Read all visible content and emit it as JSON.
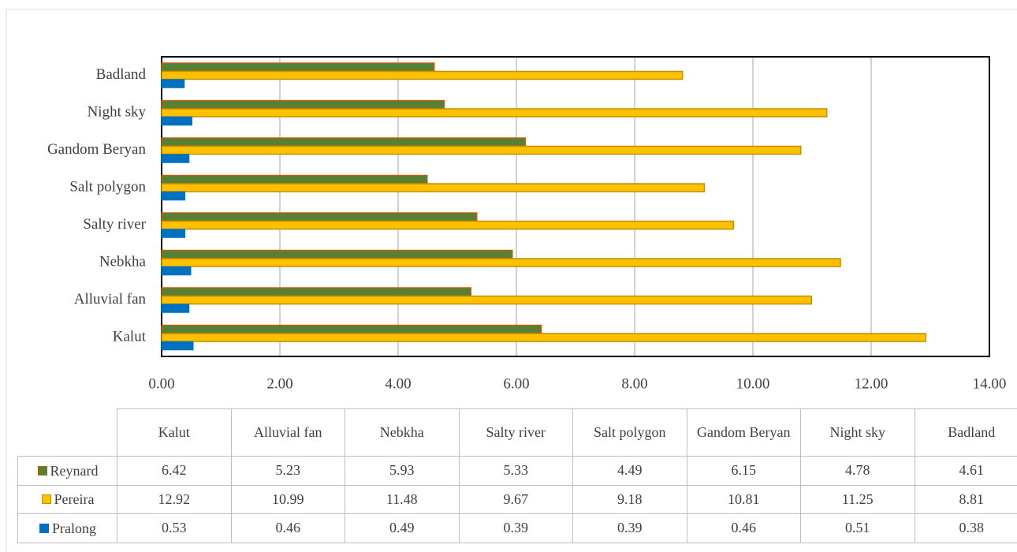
{
  "chart_data": {
    "type": "bar",
    "orientation": "horizontal",
    "categories": [
      "Kalut",
      "Alluvial fan",
      "Nebkha",
      "Salty river",
      "Salt polygon",
      "Gandom Beryan",
      "Night sky",
      "Badland"
    ],
    "series": [
      {
        "name": "Reynard",
        "color": "#548235",
        "edge_color": "#c55a11",
        "values": [
          6.42,
          5.23,
          5.93,
          5.33,
          4.49,
          6.15,
          4.78,
          4.61
        ]
      },
      {
        "name": "Pereira",
        "color": "#ffc000",
        "edge_color": "#bf9000",
        "values": [
          12.92,
          10.99,
          11.48,
          9.67,
          9.18,
          10.81,
          11.25,
          8.81
        ]
      },
      {
        "name": "Pralong",
        "color": "#0070c0",
        "edge_color": "#0070c0",
        "values": [
          0.53,
          0.46,
          0.49,
          0.39,
          0.39,
          0.46,
          0.51,
          0.38
        ]
      }
    ],
    "xlim": [
      0,
      14
    ],
    "xticks": [
      {
        "value": 0,
        "label": "0.00"
      },
      {
        "value": 2,
        "label": "2.00"
      },
      {
        "value": 4,
        "label": "4.00"
      },
      {
        "value": 6,
        "label": "6.00"
      },
      {
        "value": 8,
        "label": "8.00"
      },
      {
        "value": 10,
        "label": "10.00"
      },
      {
        "value": 12,
        "label": "12.00"
      },
      {
        "value": 14,
        "label": "14.00"
      }
    ],
    "grid": true,
    "data_table": true
  }
}
